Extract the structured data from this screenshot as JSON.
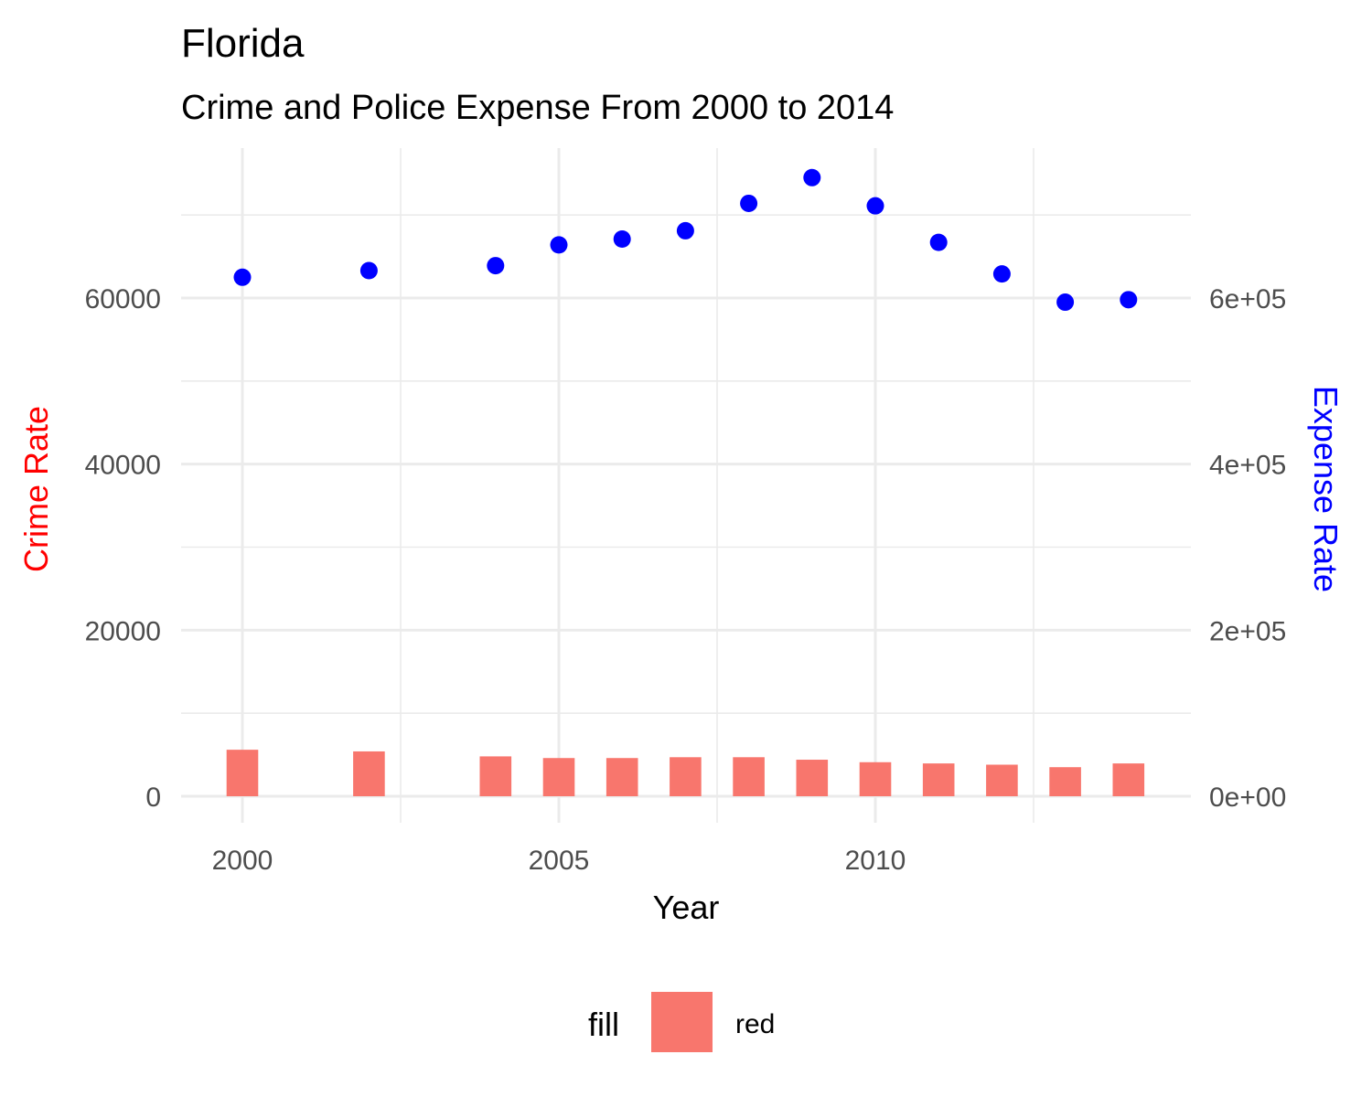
{
  "chart_data": {
    "type": "bar",
    "title": "Florida",
    "subtitle": "Crime and Police Expense From 2000 to 2014",
    "xlabel": "Year",
    "ylabel_left": "Crime Rate",
    "ylabel_right": "Expense Rate",
    "x_ticks": [
      "2000",
      "2005",
      "2010"
    ],
    "x_tick_values": [
      2000,
      2005,
      2010
    ],
    "xlim": [
      1999.0,
      2014.7
    ],
    "y_left_ticks": [
      "0",
      "20000",
      "40000",
      "60000"
    ],
    "y_left_tick_values": [
      0,
      20000,
      40000,
      60000
    ],
    "y_right_ticks": [
      "0e+00",
      "2e+05",
      "4e+05",
      "6e+05"
    ],
    "y_right_tick_values": [
      0,
      200000,
      400000,
      600000
    ],
    "ylim_left": [
      0,
      74000
    ],
    "ylim_right": [
      0,
      740000
    ],
    "grid": true,
    "legend_position": "bottom",
    "legend": {
      "title": "fill",
      "entries": [
        {
          "label": "red",
          "color": "#F8766D"
        }
      ]
    },
    "colors": {
      "bars": "#F8766D",
      "points": "#0000FF",
      "left_axis_title": "#FF0000",
      "right_axis_title": "#0000FF",
      "grid": "#EBEBEB"
    },
    "years": [
      2000,
      2002,
      2004,
      2005,
      2006,
      2007,
      2008,
      2009,
      2010,
      2011,
      2012,
      2013,
      2014
    ],
    "series": [
      {
        "type": "bar",
        "axis": "left",
        "values": [
          5600,
          5400,
          4800,
          4600,
          4600,
          4700,
          4700,
          4400,
          4100,
          3950,
          3800,
          3500,
          3950
        ]
      },
      {
        "type": "scatter",
        "axis": "right",
        "values": [
          625000,
          633000,
          639000,
          664000,
          671000,
          681000,
          714000,
          745000,
          711000,
          667000,
          629000,
          595000,
          598000
        ]
      }
    ]
  }
}
